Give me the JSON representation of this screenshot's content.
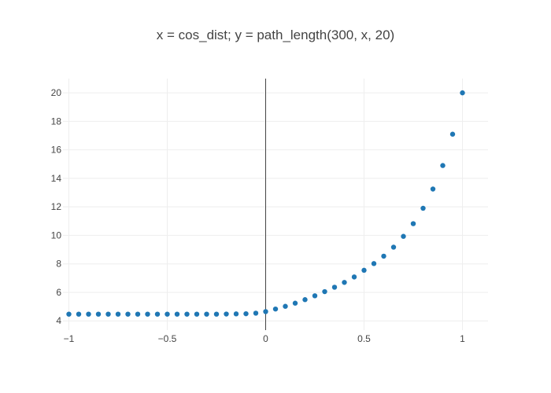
{
  "chart_data": {
    "type": "scatter",
    "title": "x = cos_dist; y = path_length(300, x, 20)",
    "xlabel": "",
    "ylabel": "",
    "xlim": [
      -1.03,
      1.13
    ],
    "ylim": [
      3.35,
      21.0
    ],
    "grid": true,
    "marker_color": "#1f77b4",
    "x_ticks": [
      {
        "value": -1,
        "label": "−1"
      },
      {
        "value": -0.5,
        "label": "−0.5"
      },
      {
        "value": 0,
        "label": "0"
      },
      {
        "value": 0.5,
        "label": "0.5"
      },
      {
        "value": 1,
        "label": "1"
      }
    ],
    "y_ticks": [
      {
        "value": 4,
        "label": "4"
      },
      {
        "value": 6,
        "label": "6"
      },
      {
        "value": 8,
        "label": "8"
      },
      {
        "value": 10,
        "label": "10"
      },
      {
        "value": 12,
        "label": "12"
      },
      {
        "value": 14,
        "label": "14"
      },
      {
        "value": 16,
        "label": "16"
      },
      {
        "value": 18,
        "label": "18"
      },
      {
        "value": 20,
        "label": "20"
      }
    ],
    "series": [
      {
        "x": [
          -1.0,
          -0.95,
          -0.9,
          -0.85,
          -0.8,
          -0.75,
          -0.7,
          -0.65,
          -0.6,
          -0.55,
          -0.5,
          -0.45,
          -0.4,
          -0.35,
          -0.3,
          -0.25,
          -0.2,
          -0.15,
          -0.1,
          -0.05,
          0.0,
          0.05,
          0.1,
          0.15,
          0.2,
          0.25,
          0.3,
          0.35,
          0.4,
          0.45,
          0.5,
          0.55,
          0.6,
          0.65,
          0.7,
          0.75,
          0.8,
          0.85,
          0.9,
          0.95,
          1.0
        ],
        "y": [
          4.47,
          4.47,
          4.47,
          4.47,
          4.47,
          4.47,
          4.47,
          4.47,
          4.47,
          4.47,
          4.47,
          4.47,
          4.47,
          4.47,
          4.47,
          4.47,
          4.48,
          4.49,
          4.5,
          4.54,
          4.65,
          4.83,
          5.02,
          5.24,
          5.49,
          5.76,
          6.05,
          6.36,
          6.7,
          7.08,
          7.55,
          8.02,
          8.54,
          9.17,
          9.93,
          10.82,
          11.9,
          13.25,
          14.9,
          17.1,
          20.0
        ]
      }
    ]
  }
}
